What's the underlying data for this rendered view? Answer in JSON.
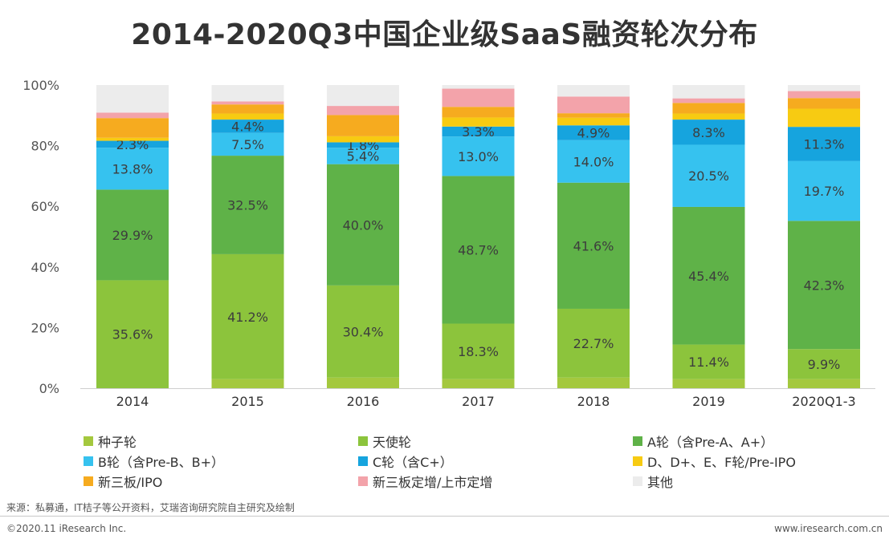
{
  "title": "2014-2020Q3中国企业级SaaS融资轮次分布",
  "source": "来源：私募通，IT桔子等公开资料，艾瑞咨询研究院自主研究及绘制",
  "copyright": "©2020.11 iResearch Inc.",
  "website": "www.iresearch.com.cn",
  "chart_data": {
    "type": "bar",
    "stacked": true,
    "categories": [
      "2014",
      "2015",
      "2016",
      "2017",
      "2018",
      "2019",
      "2020Q1-3"
    ],
    "y_ticks": [
      "0%",
      "20%",
      "40%",
      "60%",
      "80%",
      "100%"
    ],
    "ylim": [
      0,
      100
    ],
    "series": [
      {
        "name": "种子轮",
        "color": "#a4c83e",
        "values": [
          0,
          3.0,
          3.5,
          3.0,
          3.5,
          3.0,
          3.0
        ],
        "labels": [
          "",
          "",
          "",
          "",
          "",
          "",
          ""
        ]
      },
      {
        "name": "天使轮",
        "color": "#8cc43c",
        "values": [
          35.6,
          41.2,
          30.4,
          18.3,
          22.7,
          11.4,
          9.9
        ],
        "labels": [
          "35.6%",
          "41.2%",
          "30.4%",
          "18.3%",
          "22.7%",
          "11.4%",
          "9.9%"
        ]
      },
      {
        "name": "A轮（含Pre-A、A+）",
        "color": "#5fb248",
        "values": [
          29.9,
          32.5,
          40.0,
          48.7,
          41.6,
          45.4,
          42.3
        ],
        "labels": [
          "29.9%",
          "32.5%",
          "40.0%",
          "48.7%",
          "41.6%",
          "45.4%",
          "42.3%"
        ]
      },
      {
        "name": "B轮（含Pre-B、B+）",
        "color": "#36c2ef",
        "values": [
          13.8,
          7.5,
          5.4,
          13.0,
          14.0,
          20.5,
          19.7
        ],
        "labels": [
          "13.8%",
          "7.5%",
          "5.4%",
          "13.0%",
          "14.0%",
          "20.5%",
          "19.7%"
        ]
      },
      {
        "name": "C轮（含C+）",
        "color": "#16a4de",
        "values": [
          2.3,
          4.4,
          1.8,
          3.3,
          4.9,
          8.3,
          11.3
        ],
        "labels": [
          "2.3%",
          "4.4%",
          "1.8%",
          "3.3%",
          "4.9%",
          "8.3%",
          "11.3%"
        ]
      },
      {
        "name": "D、D+、E、F轮/Pre-IPO",
        "color": "#f7cb12",
        "values": [
          1.0,
          2.0,
          2.0,
          3.0,
          2.5,
          2.0,
          6.0
        ],
        "labels": [
          "",
          "",
          "",
          "",
          "",
          "",
          ""
        ]
      },
      {
        "name": "新三板/IPO",
        "color": "#f6ab1f",
        "values": [
          6.5,
          3.0,
          7.0,
          3.5,
          1.5,
          3.5,
          3.5
        ],
        "labels": [
          "",
          "",
          "",
          "",
          "",
          "",
          ""
        ]
      },
      {
        "name": "新三板定增/上市定增",
        "color": "#f3a3aa",
        "values": [
          1.8,
          1.0,
          3.0,
          6.0,
          5.5,
          1.5,
          2.3
        ],
        "labels": [
          "",
          "",
          "",
          "",
          "",
          "",
          ""
        ]
      },
      {
        "name": "其他",
        "color": "#ececec",
        "values": [
          9.1,
          5.4,
          6.9,
          1.2,
          3.8,
          4.4,
          2.0
        ],
        "labels": [
          "",
          "",
          "",
          "",
          "",
          "",
          ""
        ]
      }
    ]
  }
}
